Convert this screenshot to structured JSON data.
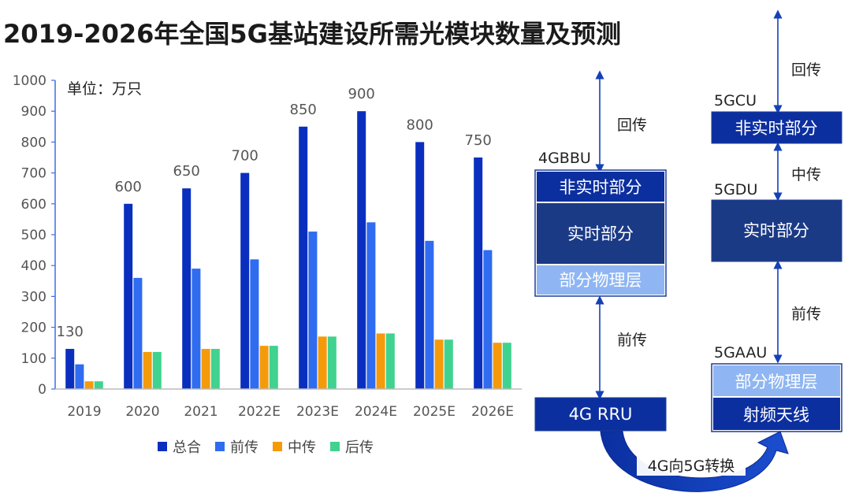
{
  "title": "2019-2026年全国5G基站建设所需光模块数量及预测",
  "chart_data": {
    "type": "bar",
    "unit_label": "单位：万只",
    "categories": [
      "2019",
      "2020",
      "2021",
      "2022E",
      "2023E",
      "2024E",
      "2025E",
      "2026E"
    ],
    "ylim": [
      0,
      1000
    ],
    "yticks": [
      0,
      100,
      200,
      300,
      400,
      500,
      600,
      700,
      800,
      900,
      1000
    ],
    "series": [
      {
        "name": "总合",
        "color": "#0a2fbf",
        "values": [
          130,
          600,
          650,
          700,
          850,
          900,
          800,
          750
        ],
        "labeled": true
      },
      {
        "name": "前传",
        "color": "#2f6cf0",
        "values": [
          80,
          360,
          390,
          420,
          510,
          540,
          480,
          450
        ],
        "labeled": false
      },
      {
        "name": "中传",
        "color": "#f59a0b",
        "values": [
          25,
          120,
          130,
          140,
          170,
          180,
          160,
          150
        ],
        "labeled": false
      },
      {
        "name": "后传",
        "color": "#40d28f",
        "values": [
          25,
          120,
          130,
          140,
          170,
          180,
          160,
          150
        ],
        "labeled": false
      }
    ],
    "legend_position": "bottom"
  },
  "diagram": {
    "left": {
      "header": "4GBBU",
      "top_label": "回传",
      "boxes": [
        "非实时部分",
        "实时部分",
        "部分物理层"
      ],
      "mid_label": "前传",
      "rru": "4G RRU"
    },
    "right": {
      "top_label": "回传",
      "cu_header": "5GCU",
      "cu_box": "非实时部分",
      "mid_label": "中传",
      "du_header": "5GDU",
      "du_box": "实时部分",
      "lower_label": "前传",
      "aau_header": "5GAAU",
      "aau_boxes": [
        "部分物理层",
        "射频天线"
      ]
    },
    "transition_label": "4G向5G转换",
    "colors": {
      "dark_blue": "#0c2fa0",
      "navy": "#1b3a86",
      "light_blue": "#8fb6f2",
      "arrow": "#1441b8"
    }
  }
}
